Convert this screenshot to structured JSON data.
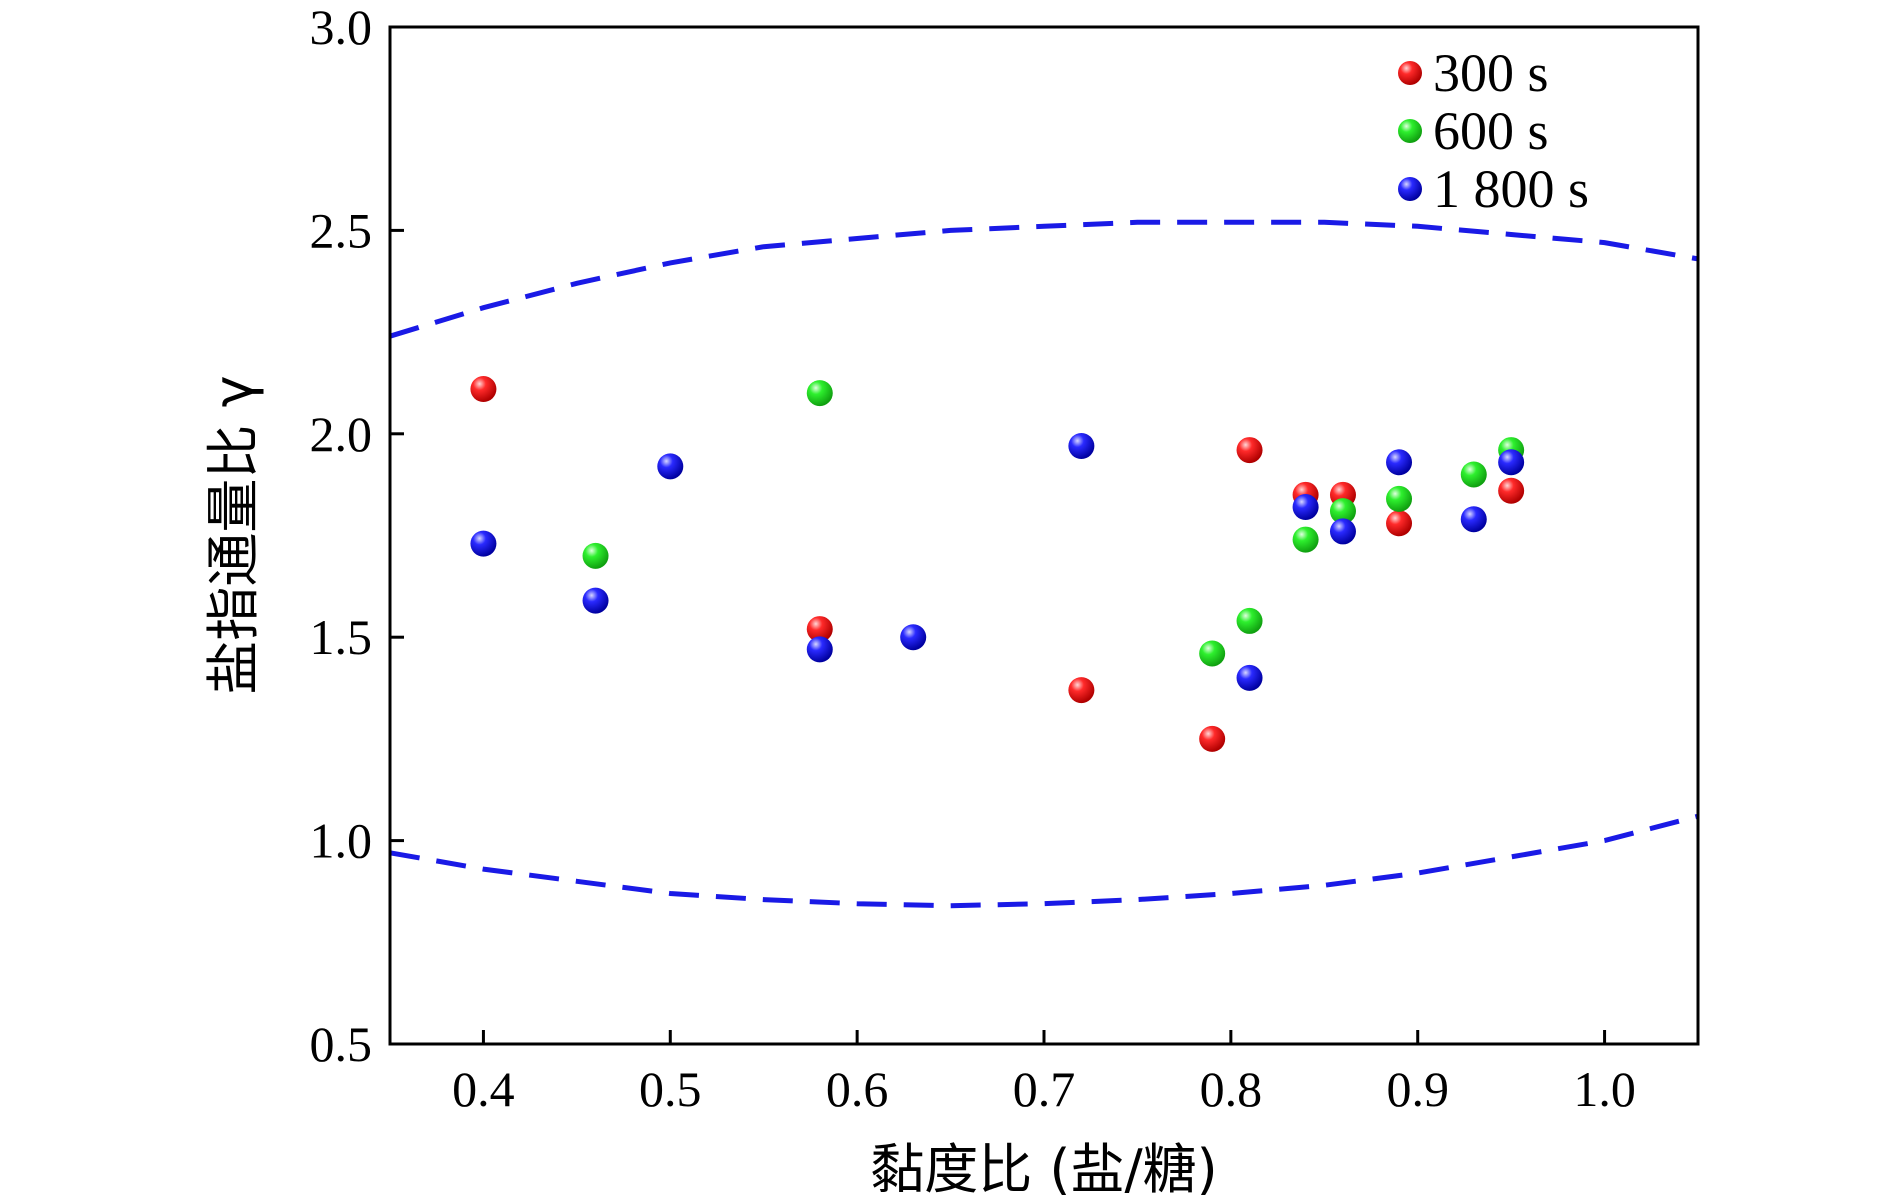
{
  "chart_data": {
    "type": "scatter",
    "xlabel": "黏度比 (盐/糖)",
    "ylabel": "盐指通量比 γ",
    "xlim": [
      0.35,
      1.05
    ],
    "ylim": [
      0.5,
      3.0
    ],
    "xticks": [
      "0.4",
      "0.5",
      "0.6",
      "0.7",
      "0.8",
      "0.9",
      "1.0"
    ],
    "yticks": [
      "0.5",
      "1.0",
      "1.5",
      "2.0",
      "2.5",
      "3.0"
    ],
    "legend_position": "top-right",
    "series": [
      {
        "name": "300 s",
        "color": "#ff1a1a",
        "x": [
          0.4,
          0.58,
          0.72,
          0.79,
          0.81,
          0.84,
          0.86,
          0.89,
          0.95
        ],
        "y": [
          2.11,
          1.52,
          1.37,
          1.25,
          1.96,
          1.85,
          1.85,
          1.78,
          1.86
        ]
      },
      {
        "name": "600 s",
        "color": "#22e622",
        "x": [
          0.46,
          0.58,
          0.79,
          0.81,
          0.84,
          0.86,
          0.89,
          0.93,
          0.95
        ],
        "y": [
          1.7,
          2.1,
          1.46,
          1.54,
          1.74,
          1.81,
          1.84,
          1.9,
          1.96
        ]
      },
      {
        "name": "1 800 s",
        "color": "#1a1aff",
        "x": [
          0.4,
          0.46,
          0.5,
          0.58,
          0.63,
          0.72,
          0.81,
          0.84,
          0.86,
          0.89,
          0.93,
          0.95
        ],
        "y": [
          1.73,
          1.59,
          1.92,
          1.47,
          1.5,
          1.97,
          1.4,
          1.82,
          1.76,
          1.93,
          1.79,
          1.93
        ]
      }
    ],
    "bounds": {
      "color": "#1a1ae6",
      "style": "dashed",
      "upper": {
        "x": [
          0.35,
          0.4,
          0.45,
          0.5,
          0.55,
          0.6,
          0.65,
          0.7,
          0.75,
          0.8,
          0.85,
          0.9,
          0.95,
          1.0,
          1.05
        ],
        "y": [
          2.24,
          2.31,
          2.37,
          2.42,
          2.46,
          2.48,
          2.5,
          2.51,
          2.52,
          2.52,
          2.52,
          2.51,
          2.49,
          2.47,
          2.43
        ]
      },
      "lower": {
        "x": [
          0.35,
          0.4,
          0.45,
          0.5,
          0.55,
          0.6,
          0.65,
          0.7,
          0.75,
          0.8,
          0.85,
          0.9,
          0.95,
          1.0,
          1.05
        ],
        "y": [
          0.97,
          0.93,
          0.9,
          0.87,
          0.855,
          0.845,
          0.84,
          0.845,
          0.855,
          0.87,
          0.89,
          0.92,
          0.96,
          1.0,
          1.06
        ]
      }
    }
  }
}
